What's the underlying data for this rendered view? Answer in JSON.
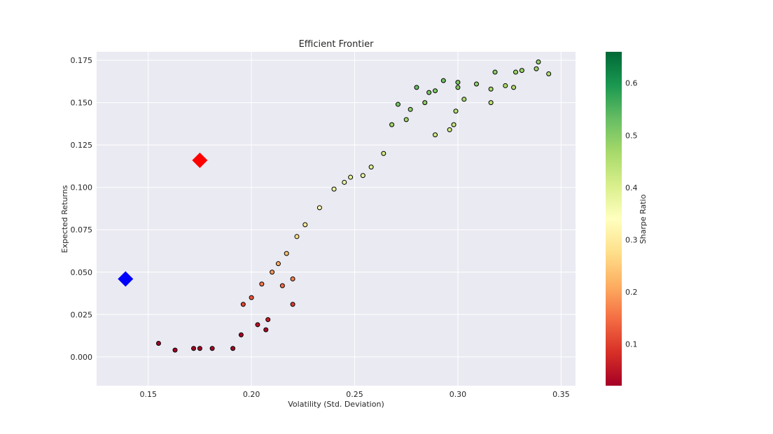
{
  "chart_data": {
    "type": "scatter",
    "title": "Efficient Frontier",
    "xlabel": "Volatility (Std. Deviation)",
    "ylabel": "Expected Returns",
    "xlim": [
      0.125,
      0.357
    ],
    "ylim": [
      -0.017,
      0.18
    ],
    "x_ticks": [
      0.15,
      0.2,
      0.25,
      0.3,
      0.35
    ],
    "x_tick_labels": [
      "0.15",
      "0.20",
      "0.25",
      "0.30",
      "0.35"
    ],
    "y_ticks": [
      0.0,
      0.025,
      0.05,
      0.075,
      0.1,
      0.125,
      0.15,
      0.175
    ],
    "y_tick_labels": [
      "0.000",
      "0.025",
      "0.050",
      "0.075",
      "0.100",
      "0.125",
      "0.150",
      "0.175"
    ],
    "grid": true,
    "background": "#eaeaf2",
    "colormap": "RdYlGn",
    "colorbar": {
      "label": "Sharpe Ratio",
      "range": [
        0.02,
        0.66
      ],
      "ticks": [
        0.1,
        0.2,
        0.3,
        0.4,
        0.5,
        0.6
      ],
      "tick_labels": [
        "0.1",
        "0.2",
        "0.3",
        "0.4",
        "0.5",
        "0.6"
      ]
    },
    "series": [
      {
        "kind": "sampled portfolios",
        "marker": "circle",
        "edgecolor": "#000000",
        "points": [
          [
            0.339,
            0.174
          ],
          [
            0.338,
            0.17
          ],
          [
            0.344,
            0.167
          ],
          [
            0.328,
            0.168
          ],
          [
            0.331,
            0.169
          ],
          [
            0.323,
            0.16
          ],
          [
            0.327,
            0.159
          ],
          [
            0.318,
            0.168
          ],
          [
            0.316,
            0.158
          ],
          [
            0.316,
            0.15
          ],
          [
            0.309,
            0.161
          ],
          [
            0.3,
            0.162
          ],
          [
            0.3,
            0.159
          ],
          [
            0.303,
            0.152
          ],
          [
            0.299,
            0.145
          ],
          [
            0.293,
            0.163
          ],
          [
            0.289,
            0.157
          ],
          [
            0.286,
            0.156
          ],
          [
            0.284,
            0.15
          ],
          [
            0.28,
            0.159
          ],
          [
            0.277,
            0.146
          ],
          [
            0.275,
            0.14
          ],
          [
            0.271,
            0.149
          ],
          [
            0.268,
            0.137
          ],
          [
            0.298,
            0.137
          ],
          [
            0.296,
            0.134
          ],
          [
            0.289,
            0.131
          ],
          [
            0.264,
            0.12
          ],
          [
            0.258,
            0.112
          ],
          [
            0.254,
            0.107
          ],
          [
            0.248,
            0.106
          ],
          [
            0.245,
            0.103
          ],
          [
            0.24,
            0.099
          ],
          [
            0.233,
            0.088
          ],
          [
            0.226,
            0.078
          ],
          [
            0.222,
            0.071
          ],
          [
            0.217,
            0.061
          ],
          [
            0.213,
            0.055
          ],
          [
            0.22,
            0.046
          ],
          [
            0.215,
            0.042
          ],
          [
            0.22,
            0.031
          ],
          [
            0.21,
            0.05
          ],
          [
            0.205,
            0.043
          ],
          [
            0.2,
            0.035
          ],
          [
            0.196,
            0.031
          ],
          [
            0.203,
            0.019
          ],
          [
            0.208,
            0.022
          ],
          [
            0.207,
            0.016
          ],
          [
            0.195,
            0.013
          ],
          [
            0.191,
            0.005
          ],
          [
            0.181,
            0.005
          ],
          [
            0.172,
            0.005
          ],
          [
            0.163,
            0.004
          ],
          [
            0.155,
            0.008
          ],
          [
            0.175,
            0.005
          ]
        ]
      },
      {
        "name": "",
        "kind": "max sharpe ratio",
        "marker": "diamond",
        "color": "#ff0000",
        "points": [
          [
            0.175,
            0.116
          ]
        ]
      },
      {
        "name": "",
        "kind": "min volatility",
        "marker": "diamond",
        "color": "#0000ff",
        "points": [
          [
            0.139,
            0.046
          ]
        ]
      }
    ]
  }
}
